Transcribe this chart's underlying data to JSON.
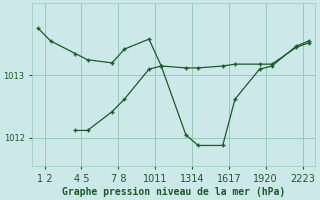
{
  "title": "Graphe pression niveau de la mer (hPa)",
  "background_color": "#cce8e8",
  "grid_color": "#99ccbb",
  "line_color": "#1a5c28",
  "x_tick_pairs": [
    "1 2",
    "4 5",
    "7 8",
    "1011",
    "1314",
    "1617",
    "1920",
    "2223"
  ],
  "x_tick_positions": [
    1.5,
    4.5,
    7.5,
    10.5,
    13.5,
    16.5,
    19.5,
    22.5
  ],
  "line1_x": [
    1,
    2,
    4,
    5,
    7,
    8,
    10,
    11,
    13,
    14,
    16,
    17,
    19,
    20,
    22,
    23
  ],
  "line1_y": [
    1013.75,
    1013.55,
    1013.35,
    1013.25,
    1013.2,
    1013.42,
    1013.58,
    1013.15,
    1013.12,
    1013.12,
    1013.15,
    1013.18,
    1013.18,
    1013.18,
    1013.45,
    1013.52
  ],
  "line2_x": [
    4,
    5,
    7,
    8,
    10,
    11,
    13,
    14,
    16,
    17,
    19,
    20,
    22,
    23
  ],
  "line2_y": [
    1012.12,
    1012.12,
    1012.42,
    1012.62,
    1013.1,
    1013.15,
    1012.05,
    1011.88,
    1011.88,
    1012.62,
    1013.1,
    1013.15,
    1013.47,
    1013.55
  ],
  "ylim": [
    1011.55,
    1014.15
  ],
  "yticks": [
    1012,
    1013
  ],
  "xlim": [
    0.5,
    23.5
  ],
  "ylabel_fontsize": 6,
  "xlabel_fontsize": 7
}
